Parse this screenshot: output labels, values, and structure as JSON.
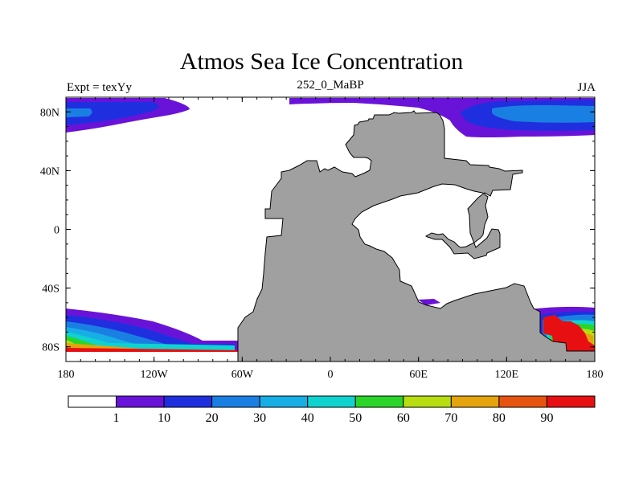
{
  "title": "Atmos Sea Ice Concentration",
  "left_label": "Expt = texYy",
  "center_label": "252_0_MaBP",
  "right_label": "JJA",
  "axes": {
    "x_ticks": [
      {
        "value": -180,
        "label": "180"
      },
      {
        "value": -120,
        "label": "120W"
      },
      {
        "value": -60,
        "label": "60W"
      },
      {
        "value": 0,
        "label": "0"
      },
      {
        "value": 60,
        "label": "60E"
      },
      {
        "value": 120,
        "label": "120E"
      },
      {
        "value": 180,
        "label": "180"
      }
    ],
    "y_ticks": [
      {
        "value": 80,
        "label": "80N"
      },
      {
        "value": 40,
        "label": "40N"
      },
      {
        "value": 0,
        "label": "0"
      },
      {
        "value": -40,
        "label": "40S"
      },
      {
        "value": -80,
        "label": "80S"
      }
    ]
  },
  "colorbar": {
    "colors": [
      "#ffffff",
      "#6a13d8",
      "#1f2fe0",
      "#1a7fe3",
      "#17aee6",
      "#10d2cf",
      "#2ad52a",
      "#b8dd10",
      "#e5a30d",
      "#e75410",
      "#e70f11"
    ],
    "labels": [
      "1",
      "10",
      "20",
      "30",
      "40",
      "50",
      "60",
      "70",
      "80",
      "90"
    ]
  },
  "map_colors": {
    "land": "#a0a0a0",
    "coast": "#000000"
  }
}
